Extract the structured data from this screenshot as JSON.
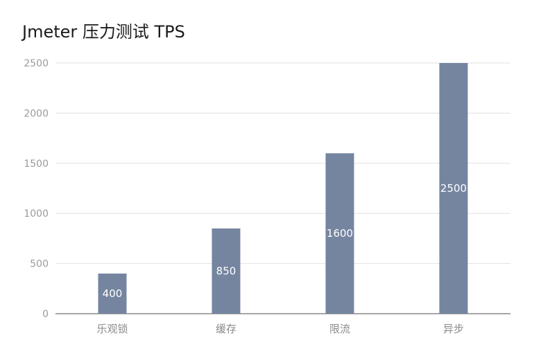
{
  "chart_data": {
    "type": "bar",
    "title": "Jmeter 压力测试 TPS",
    "categories": [
      "乐观锁",
      "缓存",
      "限流",
      "异步"
    ],
    "values": [
      400,
      850,
      1600,
      2500
    ],
    "ylim": [
      0,
      2500
    ],
    "yticks": [
      0,
      500,
      1000,
      1500,
      2000,
      2500
    ],
    "xlabel": "",
    "ylabel": "",
    "grid": true,
    "bar_color": "#7585a0",
    "grid_color": "#e0e0e0",
    "axis_color": "#888888"
  }
}
